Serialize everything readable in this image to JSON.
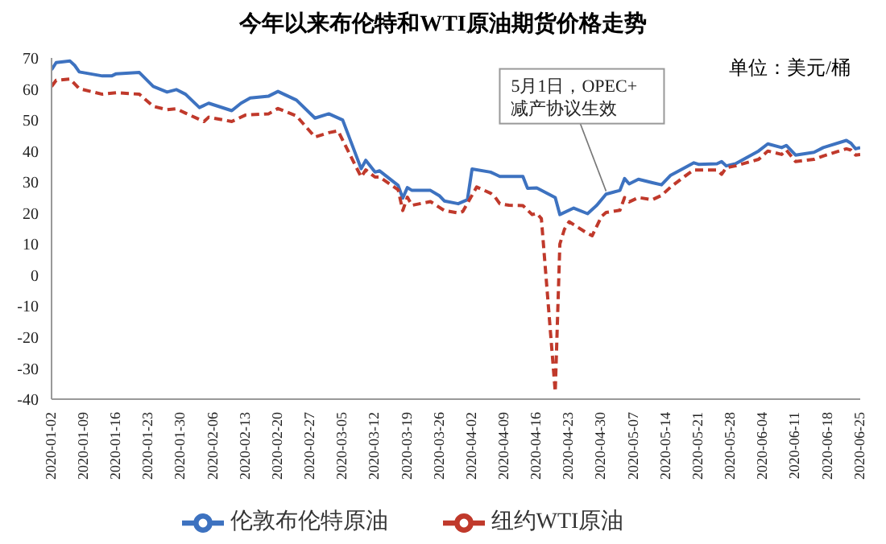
{
  "chart_data": {
    "type": "line",
    "title": "今年以来布伦特和WTI原油期货价格走势",
    "annotations": [
      "单位：美元/桶",
      {
        "text": "5月1日，OPEC+\n减产协议生效",
        "x": "2020-05-01",
        "y": 26
      }
    ],
    "ylim": [
      -40,
      70
    ],
    "yticks": [
      -40,
      -30,
      -20,
      -10,
      0,
      10,
      20,
      30,
      40,
      50,
      60,
      70
    ],
    "xlim": [
      "2020-01-02",
      "2020-06-25"
    ],
    "xticks": [
      "2020-01-02",
      "2020-01-09",
      "2020-01-16",
      "2020-01-23",
      "2020-01-30",
      "2020-02-06",
      "2020-02-13",
      "2020-02-20",
      "2020-02-27",
      "2020-03-05",
      "2020-03-12",
      "2020-03-19",
      "2020-03-26",
      "2020-04-02",
      "2020-04-09",
      "2020-04-16",
      "2020-04-23",
      "2020-04-30",
      "2020-05-07",
      "2020-05-14",
      "2020-05-21",
      "2020-05-28",
      "2020-06-04",
      "2020-06-11",
      "2020-06-18",
      "2020-06-25"
    ],
    "grid": false,
    "legend": "bottom",
    "marker": "none",
    "series": [
      {
        "name": "伦敦布伦特原油",
        "color": "#3d72c0",
        "line_style": "solid",
        "x": [
          "2020-01-02",
          "2020-01-03",
          "2020-01-06",
          "2020-01-07",
          "2020-01-08",
          "2020-01-13",
          "2020-01-15",
          "2020-01-16",
          "2020-01-21",
          "2020-01-24",
          "2020-01-27",
          "2020-01-29",
          "2020-01-31",
          "2020-02-03",
          "2020-02-05",
          "2020-02-10",
          "2020-02-12",
          "2020-02-14",
          "2020-02-18",
          "2020-02-20",
          "2020-02-24",
          "2020-02-28",
          "2020-03-02",
          "2020-03-05",
          "2020-03-09",
          "2020-03-10",
          "2020-03-12",
          "2020-03-13",
          "2020-03-17",
          "2020-03-18",
          "2020-03-19",
          "2020-03-20",
          "2020-03-24",
          "2020-03-26",
          "2020-03-27",
          "2020-03-30",
          "2020-04-01",
          "2020-04-02",
          "2020-04-06",
          "2020-04-07",
          "2020-04-08",
          "2020-04-13",
          "2020-04-14",
          "2020-04-16",
          "2020-04-20",
          "2020-04-21",
          "2020-04-24",
          "2020-04-27",
          "2020-04-29",
          "2020-05-01",
          "2020-05-04",
          "2020-05-05",
          "2020-05-06",
          "2020-05-08",
          "2020-05-11",
          "2020-05-13",
          "2020-05-15",
          "2020-05-18",
          "2020-05-20",
          "2020-05-21",
          "2020-05-25",
          "2020-05-26",
          "2020-05-27",
          "2020-05-29",
          "2020-06-03",
          "2020-06-05",
          "2020-06-08",
          "2020-06-09",
          "2020-06-11",
          "2020-06-15",
          "2020-06-17",
          "2020-06-22",
          "2020-06-23",
          "2020-06-24",
          "2020-06-25"
        ],
        "values": [
          66.2,
          68.5,
          69,
          67.6,
          65.5,
          64.2,
          64.2,
          64.9,
          65.3,
          60.8,
          59,
          59.8,
          58.3,
          54,
          55.4,
          53,
          55.4,
          57.1,
          57.7,
          59.2,
          56.4,
          50.6,
          52,
          50,
          34.3,
          37,
          33.2,
          33.6,
          28.9,
          24.8,
          28.2,
          27.3,
          27.3,
          25.5,
          23.9,
          23,
          24.3,
          34.2,
          33.2,
          32.5,
          31.8,
          31.8,
          28,
          28.1,
          25,
          19.5,
          21.6,
          19.8,
          22.5,
          26.1,
          27.3,
          31.1,
          29.4,
          30.9,
          29.8,
          29.1,
          32.2,
          34.6,
          36.2,
          35.7,
          35.9,
          36.6,
          35.2,
          35.9,
          40,
          42.3,
          41.1,
          41.8,
          38.7,
          39.6,
          41.1,
          43.4,
          42.5,
          40.7,
          41.1
        ]
      },
      {
        "name": "纽约WTI原油",
        "color": "#c0392b",
        "line_style": "dashed",
        "x": [
          "2020-01-02",
          "2020-01-03",
          "2020-01-06",
          "2020-01-08",
          "2020-01-13",
          "2020-01-16",
          "2020-01-21",
          "2020-01-24",
          "2020-01-27",
          "2020-01-29",
          "2020-01-31",
          "2020-02-04",
          "2020-02-05",
          "2020-02-10",
          "2020-02-13",
          "2020-02-18",
          "2020-02-20",
          "2020-02-24",
          "2020-02-28",
          "2020-03-02",
          "2020-03-04",
          "2020-03-09",
          "2020-03-10",
          "2020-03-12",
          "2020-03-13",
          "2020-03-17",
          "2020-03-18",
          "2020-03-19",
          "2020-03-20",
          "2020-03-24",
          "2020-03-27",
          "2020-03-30",
          "2020-03-31",
          "2020-04-03",
          "2020-04-06",
          "2020-04-07",
          "2020-04-08",
          "2020-04-10",
          "2020-04-13",
          "2020-04-15",
          "2020-04-16",
          "2020-04-17",
          "2020-04-20",
          "2020-04-21",
          "2020-04-22",
          "2020-04-23",
          "2020-04-27",
          "2020-04-28",
          "2020-04-30",
          "2020-05-01",
          "2020-05-04",
          "2020-05-05",
          "2020-05-06",
          "2020-05-08",
          "2020-05-11",
          "2020-05-13",
          "2020-05-15",
          "2020-05-18",
          "2020-05-20",
          "2020-05-25",
          "2020-05-26",
          "2020-05-27",
          "2020-05-29",
          "2020-06-03",
          "2020-06-05",
          "2020-06-08",
          "2020-06-09",
          "2020-06-11",
          "2020-06-15",
          "2020-06-17",
          "2020-06-22",
          "2020-06-23",
          "2020-06-24",
          "2020-06-25"
        ],
        "values": [
          60.8,
          62.8,
          63.2,
          60.1,
          58.3,
          58.8,
          58.3,
          54.4,
          53.3,
          53.6,
          52.2,
          49.5,
          50.9,
          49.5,
          51.6,
          52,
          53.7,
          51.3,
          44.5,
          45.9,
          46.5,
          31.6,
          33.9,
          31.6,
          31.6,
          27.5,
          20.8,
          25.1,
          22.5,
          23.7,
          20.8,
          20,
          20.5,
          28.4,
          26.4,
          25.1,
          23,
          22.5,
          22.4,
          19.5,
          19.9,
          18.2,
          -37.6,
          10,
          14.8,
          17.2,
          13.4,
          12.7,
          18.9,
          20.2,
          20.9,
          25,
          23.6,
          25,
          24.3,
          25.7,
          28.4,
          31.8,
          33.9,
          33.9,
          32.5,
          34.6,
          35.2,
          37.3,
          40,
          38.9,
          40.3,
          36.6,
          37.3,
          38.4,
          40.7,
          40.3,
          38.7,
          38.9
        ]
      }
    ]
  }
}
